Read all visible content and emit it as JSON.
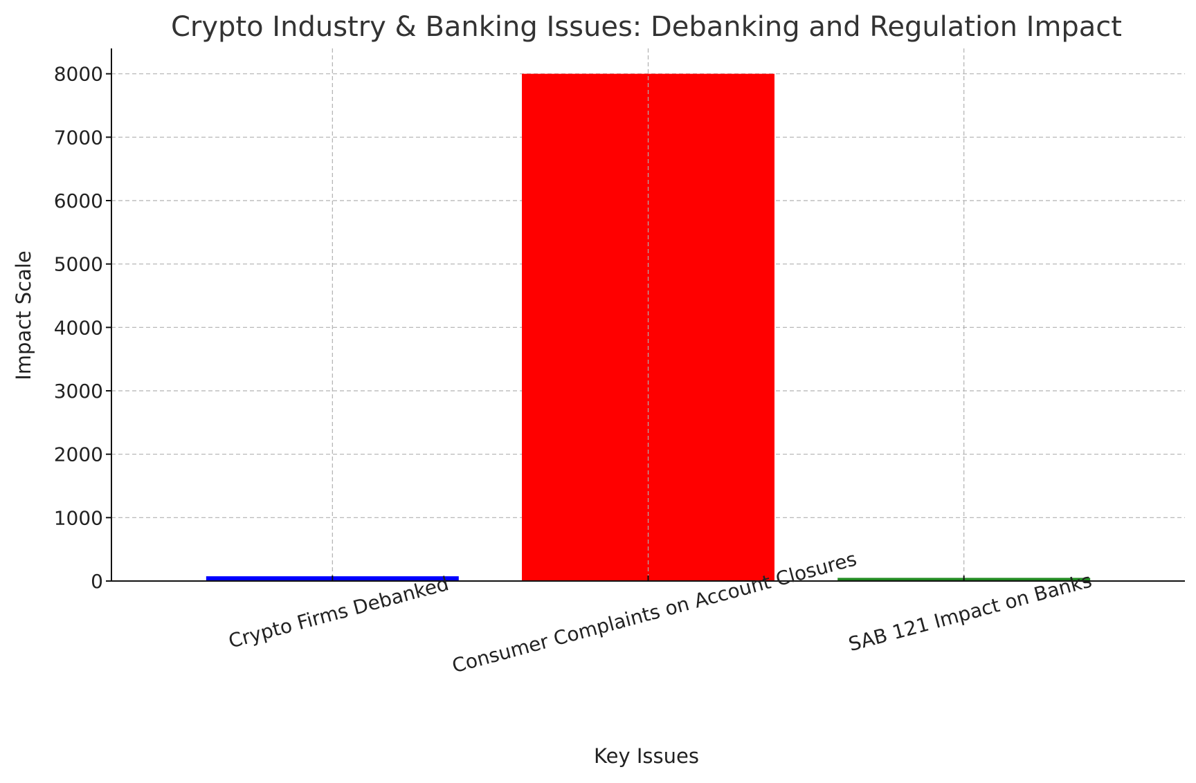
{
  "chart_data": {
    "type": "bar",
    "title": "Crypto Industry & Banking Issues: Debanking and Regulation Impact",
    "xlabel": "Key Issues",
    "ylabel": "Impact Scale",
    "categories": [
      "Crypto Firms Debanked",
      "Consumer Complaints on Account Closures",
      "SAB 121 Impact on Banks"
    ],
    "values": [
      75,
      8000,
      50
    ],
    "colors": [
      "#0000ff",
      "#ff0000",
      "#228b22"
    ],
    "ylim": [
      0,
      8400
    ],
    "yticks": [
      0,
      1000,
      2000,
      3000,
      4000,
      5000,
      6000,
      7000,
      8000
    ],
    "grid": true,
    "category_label_rotation": "slanted"
  }
}
